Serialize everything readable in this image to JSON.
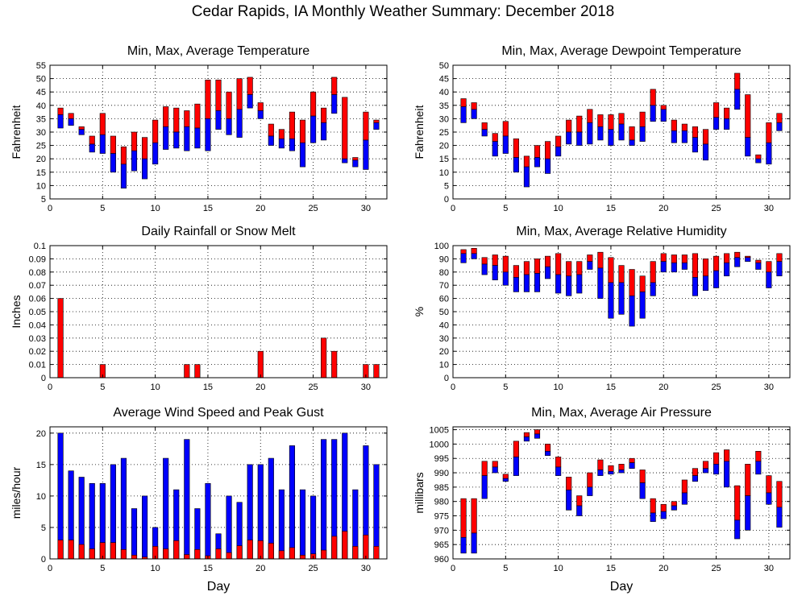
{
  "page": {
    "title": "Cedar Rapids, IA Monthly Weather Summary: December 2018"
  },
  "colors": {
    "max": "#ff0000",
    "min": "#0000ff",
    "bar_outline": "#000000"
  },
  "chart_data": [
    {
      "id": "temperature",
      "type": "bar",
      "title": "Min, Max, Average Temperature",
      "xlabel": "",
      "ylabel": "Fahrenheit",
      "xlim": [
        0,
        32
      ],
      "ylim": [
        5,
        55
      ],
      "yticks": [
        5,
        10,
        15,
        20,
        25,
        30,
        35,
        40,
        45,
        50,
        55
      ],
      "xticks": [
        0,
        5,
        10,
        15,
        20,
        25,
        30
      ],
      "grid": true,
      "days": [
        1,
        2,
        3,
        4,
        5,
        6,
        7,
        8,
        9,
        10,
        11,
        12,
        13,
        14,
        15,
        16,
        17,
        18,
        19,
        20,
        21,
        22,
        23,
        24,
        25,
        26,
        27,
        28,
        29,
        30,
        31
      ],
      "min": [
        31.5,
        32.5,
        29,
        22.5,
        22,
        15,
        9,
        15.5,
        12.5,
        18,
        23.5,
        24,
        23,
        24,
        23,
        31,
        29,
        28,
        39,
        35,
        25,
        24,
        23,
        17,
        26,
        27,
        37,
        18.5,
        17,
        16,
        31
      ],
      "avg": [
        36.5,
        35,
        31,
        25.5,
        29,
        22,
        18,
        23,
        20,
        26,
        32,
        30,
        32,
        31.5,
        35,
        38,
        35,
        38.5,
        44,
        38,
        28.5,
        27.5,
        27.5,
        26,
        36,
        33.5,
        44,
        20,
        19.5,
        27,
        33.5
      ],
      "max": [
        39,
        37,
        32,
        28.5,
        37,
        28.5,
        24.5,
        30,
        28,
        34.5,
        39.5,
        39,
        38,
        40.5,
        49.5,
        49.5,
        45,
        50,
        50.5,
        41,
        33,
        31,
        37.5,
        34.5,
        45,
        39,
        50.5,
        43,
        20.5,
        37.5,
        34.5
      ]
    },
    {
      "id": "dewpoint",
      "type": "bar",
      "title": "Min, Max, Average Dewpoint Temperature",
      "xlabel": "",
      "ylabel": "Fahrenheit",
      "xlim": [
        0,
        32
      ],
      "ylim": [
        0,
        50
      ],
      "yticks": [
        0,
        5,
        10,
        15,
        20,
        25,
        30,
        35,
        40,
        45,
        50
      ],
      "xticks": [
        0,
        5,
        10,
        15,
        20,
        25,
        30
      ],
      "grid": true,
      "days": [
        1,
        2,
        3,
        4,
        5,
        6,
        7,
        8,
        9,
        10,
        11,
        12,
        13,
        14,
        15,
        16,
        17,
        18,
        19,
        20,
        21,
        22,
        23,
        24,
        25,
        26,
        27,
        28,
        29,
        30,
        31
      ],
      "min": [
        28.5,
        30,
        23.5,
        16,
        17,
        10,
        4.5,
        12,
        9.5,
        16,
        20.5,
        20,
        20.5,
        22,
        20,
        22,
        20,
        21.5,
        29,
        29,
        21,
        21,
        17.5,
        14.5,
        26,
        26,
        33.5,
        16,
        13.5,
        13,
        25.5
      ],
      "avg": [
        34.5,
        33.5,
        26,
        21.5,
        23.5,
        15.5,
        12,
        15.5,
        15,
        19.5,
        25,
        25,
        28.5,
        27,
        26,
        28,
        22,
        27,
        35,
        33.5,
        25.5,
        25.5,
        23,
        20.5,
        30.5,
        30,
        41,
        23,
        15,
        21,
        28.5
      ],
      "max": [
        37.5,
        36,
        28.5,
        24.5,
        29,
        22.5,
        16,
        20,
        21.5,
        23.5,
        29.5,
        31,
        33.5,
        31.5,
        31.5,
        32,
        27,
        32.5,
        41,
        35,
        29.5,
        28,
        27,
        26,
        36,
        34,
        47,
        39,
        16.5,
        28.5,
        32
      ]
    },
    {
      "id": "rainfall",
      "type": "bar",
      "title": "Daily Rainfall or Snow Melt",
      "xlabel": "",
      "ylabel": "Inches",
      "xlim": [
        0,
        32
      ],
      "ylim": [
        0,
        0.1
      ],
      "yticks": [
        0,
        0.01,
        0.02,
        0.03,
        0.04,
        0.05,
        0.06,
        0.07,
        0.08,
        0.09,
        0.1
      ],
      "xticks": [
        0,
        5,
        10,
        15,
        20,
        25,
        30
      ],
      "grid": true,
      "days": [
        1,
        2,
        3,
        4,
        5,
        6,
        7,
        8,
        9,
        10,
        11,
        12,
        13,
        14,
        15,
        16,
        17,
        18,
        19,
        20,
        21,
        22,
        23,
        24,
        25,
        26,
        27,
        28,
        29,
        30,
        31
      ],
      "values": [
        0.06,
        0,
        0,
        0,
        0.01,
        0,
        0,
        0,
        0,
        0,
        0,
        0,
        0.01,
        0.01,
        0,
        0,
        0,
        0,
        0,
        0.02,
        0,
        0,
        0,
        0,
        0,
        0.03,
        0.02,
        0,
        0,
        0.01,
        0.01
      ]
    },
    {
      "id": "humidity",
      "type": "bar",
      "title": "Min, Max, Average Relative Humidity",
      "xlabel": "",
      "ylabel": "%",
      "xlim": [
        0,
        32
      ],
      "ylim": [
        0,
        100
      ],
      "yticks": [
        0,
        10,
        20,
        30,
        40,
        50,
        60,
        70,
        80,
        90,
        100
      ],
      "xticks": [
        0,
        5,
        10,
        15,
        20,
        25,
        30
      ],
      "grid": true,
      "days": [
        1,
        2,
        3,
        4,
        5,
        6,
        7,
        8,
        9,
        10,
        11,
        12,
        13,
        14,
        15,
        16,
        17,
        18,
        19,
        20,
        21,
        22,
        23,
        24,
        25,
        26,
        27,
        28,
        29,
        30,
        31
      ],
      "min": [
        87,
        90,
        78,
        74,
        70,
        65,
        65,
        65,
        75,
        64,
        62,
        64,
        82,
        60,
        45,
        48,
        39,
        45,
        62,
        80,
        80,
        82,
        62,
        66,
        68,
        77,
        84,
        88,
        82,
        68,
        77
      ],
      "avg": [
        94,
        94,
        86,
        85,
        80,
        76,
        78,
        79,
        84,
        78,
        77,
        78,
        88,
        83,
        72,
        72,
        62,
        65,
        72,
        88,
        87,
        87,
        76,
        77,
        81,
        87,
        91,
        91,
        87,
        80,
        88
      ],
      "max": [
        97,
        98,
        91,
        93,
        92,
        85,
        88,
        90,
        92,
        94,
        88,
        88,
        93,
        95,
        91,
        85,
        82,
        77,
        88,
        94,
        93,
        93,
        94,
        90,
        92,
        94,
        95,
        92,
        89,
        88,
        94
      ]
    },
    {
      "id": "wind",
      "type": "bar",
      "title": "Average Wind Speed and Peak Gust",
      "xlabel": "Day",
      "ylabel": "miles/hour",
      "xlim": [
        0,
        32
      ],
      "ylim": [
        0,
        21
      ],
      "yticks": [
        0,
        5,
        10,
        15,
        20
      ],
      "xticks": [
        0,
        5,
        10,
        15,
        20,
        25,
        30
      ],
      "grid": true,
      "days": [
        1,
        2,
        3,
        4,
        5,
        6,
        7,
        8,
        9,
        10,
        11,
        12,
        13,
        14,
        15,
        16,
        17,
        18,
        19,
        20,
        21,
        22,
        23,
        24,
        25,
        26,
        27,
        28,
        29,
        30,
        31
      ],
      "avg_speed": [
        3,
        3,
        2.3,
        1.6,
        2.6,
        2.6,
        1.5,
        0.6,
        0.3,
        2,
        1.6,
        2.9,
        0.7,
        1.5,
        0.5,
        1.6,
        1,
        2.1,
        3,
        2.9,
        2.5,
        1.3,
        1.8,
        0.6,
        0.8,
        1.4,
        3.6,
        4.4,
        2,
        3.8,
        2
      ],
      "peak_gust": [
        20,
        14,
        13,
        12,
        12,
        15,
        16,
        8,
        10,
        5,
        16,
        11,
        19,
        8,
        12,
        4,
        10,
        9,
        15,
        15,
        16,
        11,
        18,
        11,
        10,
        19,
        19,
        20,
        11,
        18,
        15
      ]
    },
    {
      "id": "pressure",
      "type": "bar",
      "title": "Min, Max, Average Air Pressure",
      "xlabel": "Day",
      "ylabel": "millibars",
      "xlim": [
        0,
        32
      ],
      "ylim": [
        960,
        1006
      ],
      "yticks": [
        960,
        965,
        970,
        975,
        980,
        985,
        990,
        995,
        1000,
        1005
      ],
      "xticks": [
        0,
        5,
        10,
        15,
        20,
        25,
        30
      ],
      "grid": true,
      "days": [
        1,
        2,
        3,
        4,
        5,
        6,
        7,
        8,
        9,
        10,
        11,
        12,
        13,
        14,
        15,
        16,
        17,
        18,
        19,
        20,
        21,
        22,
        23,
        24,
        25,
        26,
        27,
        28,
        29,
        30,
        31
      ],
      "min": [
        962,
        962,
        981,
        990,
        987,
        989,
        1001,
        1002,
        996,
        989,
        977,
        975,
        982,
        989,
        989.5,
        990,
        991.5,
        981,
        973,
        974,
        977,
        979,
        987,
        990,
        989.5,
        985,
        967,
        970,
        989.5,
        979,
        971
      ],
      "avg": [
        967.5,
        969,
        989,
        992,
        988,
        995.5,
        1002.5,
        1003.5,
        997.5,
        992,
        984,
        978.5,
        985,
        991,
        990.5,
        991,
        993.5,
        986.5,
        976,
        976.5,
        978.5,
        983,
        989,
        991.5,
        993,
        994,
        973.5,
        982,
        994,
        983,
        978
      ],
      "max": [
        981,
        981,
        994,
        994,
        989.5,
        1001,
        1004,
        1005,
        1000,
        995.5,
        988.5,
        982,
        990,
        994.5,
        992.5,
        993,
        995,
        991,
        981,
        979,
        980,
        987.5,
        991.5,
        994,
        997,
        998,
        985.5,
        993,
        997.5,
        989,
        987
      ]
    }
  ]
}
